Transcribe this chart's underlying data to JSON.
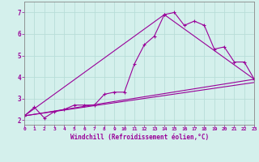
{
  "xlabel": "Windchill (Refroidissement éolien,°C)",
  "background_color": "#d4f0ec",
  "grid_color": "#b8ddd8",
  "line_color": "#990099",
  "x_ticks": [
    0,
    1,
    2,
    3,
    4,
    5,
    6,
    7,
    8,
    9,
    10,
    11,
    12,
    13,
    14,
    15,
    16,
    17,
    18,
    19,
    20,
    21,
    22,
    23
  ],
  "y_ticks": [
    2,
    3,
    4,
    5,
    6,
    7
  ],
  "ylim": [
    1.8,
    7.5
  ],
  "xlim": [
    0,
    23
  ],
  "series1_x": [
    0,
    1,
    2,
    3,
    4,
    5,
    6,
    7,
    8,
    9,
    10,
    11,
    12,
    13,
    14,
    15,
    16,
    17,
    18,
    19,
    20,
    21,
    22,
    23
  ],
  "series1_y": [
    2.2,
    2.6,
    2.1,
    2.4,
    2.5,
    2.7,
    2.7,
    2.7,
    3.2,
    3.3,
    3.3,
    4.6,
    5.5,
    5.9,
    6.9,
    7.0,
    6.4,
    6.6,
    6.4,
    5.3,
    5.4,
    4.7,
    4.7,
    3.9
  ],
  "series2_x": [
    0,
    23
  ],
  "series2_y": [
    2.2,
    3.9
  ],
  "series3_x": [
    0,
    14,
    23
  ],
  "series3_y": [
    2.2,
    6.9,
    3.9
  ],
  "series4_x": [
    0,
    23
  ],
  "series4_y": [
    2.2,
    3.75
  ]
}
